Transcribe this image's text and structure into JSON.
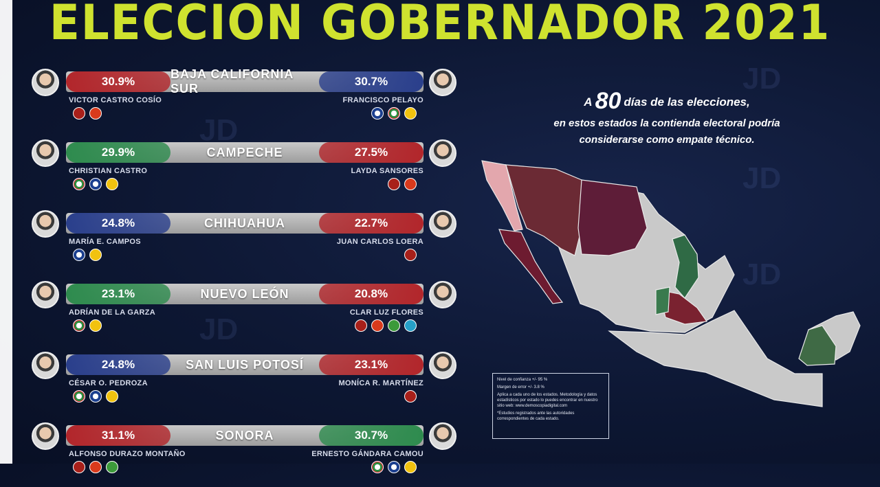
{
  "title": "ELECCION GOBERNADOR 2021",
  "headline": {
    "prefix": "A",
    "days": "80",
    "suffix": "días de las elecciones,",
    "line2": "en estos estados la contienda electoral podría",
    "line3": "considerarse como empate técnico."
  },
  "notes": {
    "confidence": "Nivel de confianza +/- 95 %",
    "margin": "Margen de error +/- 3.8 %",
    "methodology": "Aplica a cada uno de los estados. Metodología y datos estadísticos por estado lo puedes encontrar en nuestro sitio web: www.demoscopiadigital.com",
    "footnote": "*Estudios registrados ante las autoridades correspondientes de cada estado."
  },
  "colors": {
    "morena": "#b2262b",
    "pri": "#2e8b4e",
    "pan": "#2a3f8c",
    "title": "#cfe22f",
    "map_gray": "#c9c9c9"
  },
  "chart_data": {
    "type": "bar",
    "categories": [
      "BAJA CALIFORNIA SUR",
      "CAMPECHE",
      "CHIHUAHUA",
      "NUEVO LEÓN",
      "SAN LUIS POTOSÍ",
      "SONORA"
    ],
    "rows": [
      {
        "state": "BAJA CALIFORNIA SUR",
        "left": {
          "pct": "30.9%",
          "value": 30.9,
          "name": "VICTOR CASTRO COSÍO",
          "color": "#b2262b",
          "party_logos": [
            "morena",
            "pt"
          ]
        },
        "right": {
          "pct": "30.7%",
          "value": 30.7,
          "name": "FRANCISCO PELAYO",
          "color": "#2a3f8c",
          "party_logos": [
            "pan",
            "pri",
            "prd"
          ]
        }
      },
      {
        "state": "CAMPECHE",
        "left": {
          "pct": "29.9%",
          "value": 29.9,
          "name": "CHRISTIAN CASTRO",
          "color": "#2e8b4e",
          "party_logos": [
            "pri",
            "pan",
            "prd"
          ]
        },
        "right": {
          "pct": "27.5%",
          "value": 27.5,
          "name": "LAYDA SANSORES",
          "color": "#b2262b",
          "party_logos": [
            "morena",
            "pt"
          ]
        }
      },
      {
        "state": "CHIHUAHUA",
        "left": {
          "pct": "24.8%",
          "value": 24.8,
          "name": "MARÍA E. CAMPOS",
          "color": "#2a3f8c",
          "party_logos": [
            "pan",
            "prd"
          ]
        },
        "right": {
          "pct": "22.7%",
          "value": 22.7,
          "name": "JUAN CARLOS LOERA",
          "color": "#b2262b",
          "party_logos": [
            "morena"
          ]
        }
      },
      {
        "state": "NUEVO LEÓN",
        "left": {
          "pct": "23.1%",
          "value": 23.1,
          "name": "ADRÍAN DE LA GARZA",
          "color": "#2e8b4e",
          "party_logos": [
            "pri",
            "prd"
          ]
        },
        "right": {
          "pct": "20.8%",
          "value": 20.8,
          "name": "CLAR LUZ FLORES",
          "color": "#b2262b",
          "party_logos": [
            "morena",
            "pt",
            "pvem",
            "nva"
          ]
        }
      },
      {
        "state": "SAN LUIS POTOSÍ",
        "left": {
          "pct": "24.8%",
          "value": 24.8,
          "name": "CÉSAR O. PEDROZA",
          "color": "#2a3f8c",
          "party_logos": [
            "pri",
            "pan",
            "prd"
          ]
        },
        "right": {
          "pct": "23.1%",
          "value": 23.1,
          "name": "MONÍCA R. MARTÍNEZ",
          "color": "#b2262b",
          "party_logos": [
            "morena"
          ]
        }
      },
      {
        "state": "SONORA",
        "left": {
          "pct": "31.1%",
          "value": 31.1,
          "name": "ALFONSO DURAZO MONTAÑO",
          "color": "#b2262b",
          "party_logos": [
            "morena",
            "pt",
            "pvem"
          ]
        },
        "right": {
          "pct": "30.7%",
          "value": 30.7,
          "name": "ERNESTO GÁNDARA CAMOU",
          "color": "#2e8b4e",
          "party_logos": [
            "pri",
            "pan",
            "prd"
          ]
        }
      }
    ]
  }
}
